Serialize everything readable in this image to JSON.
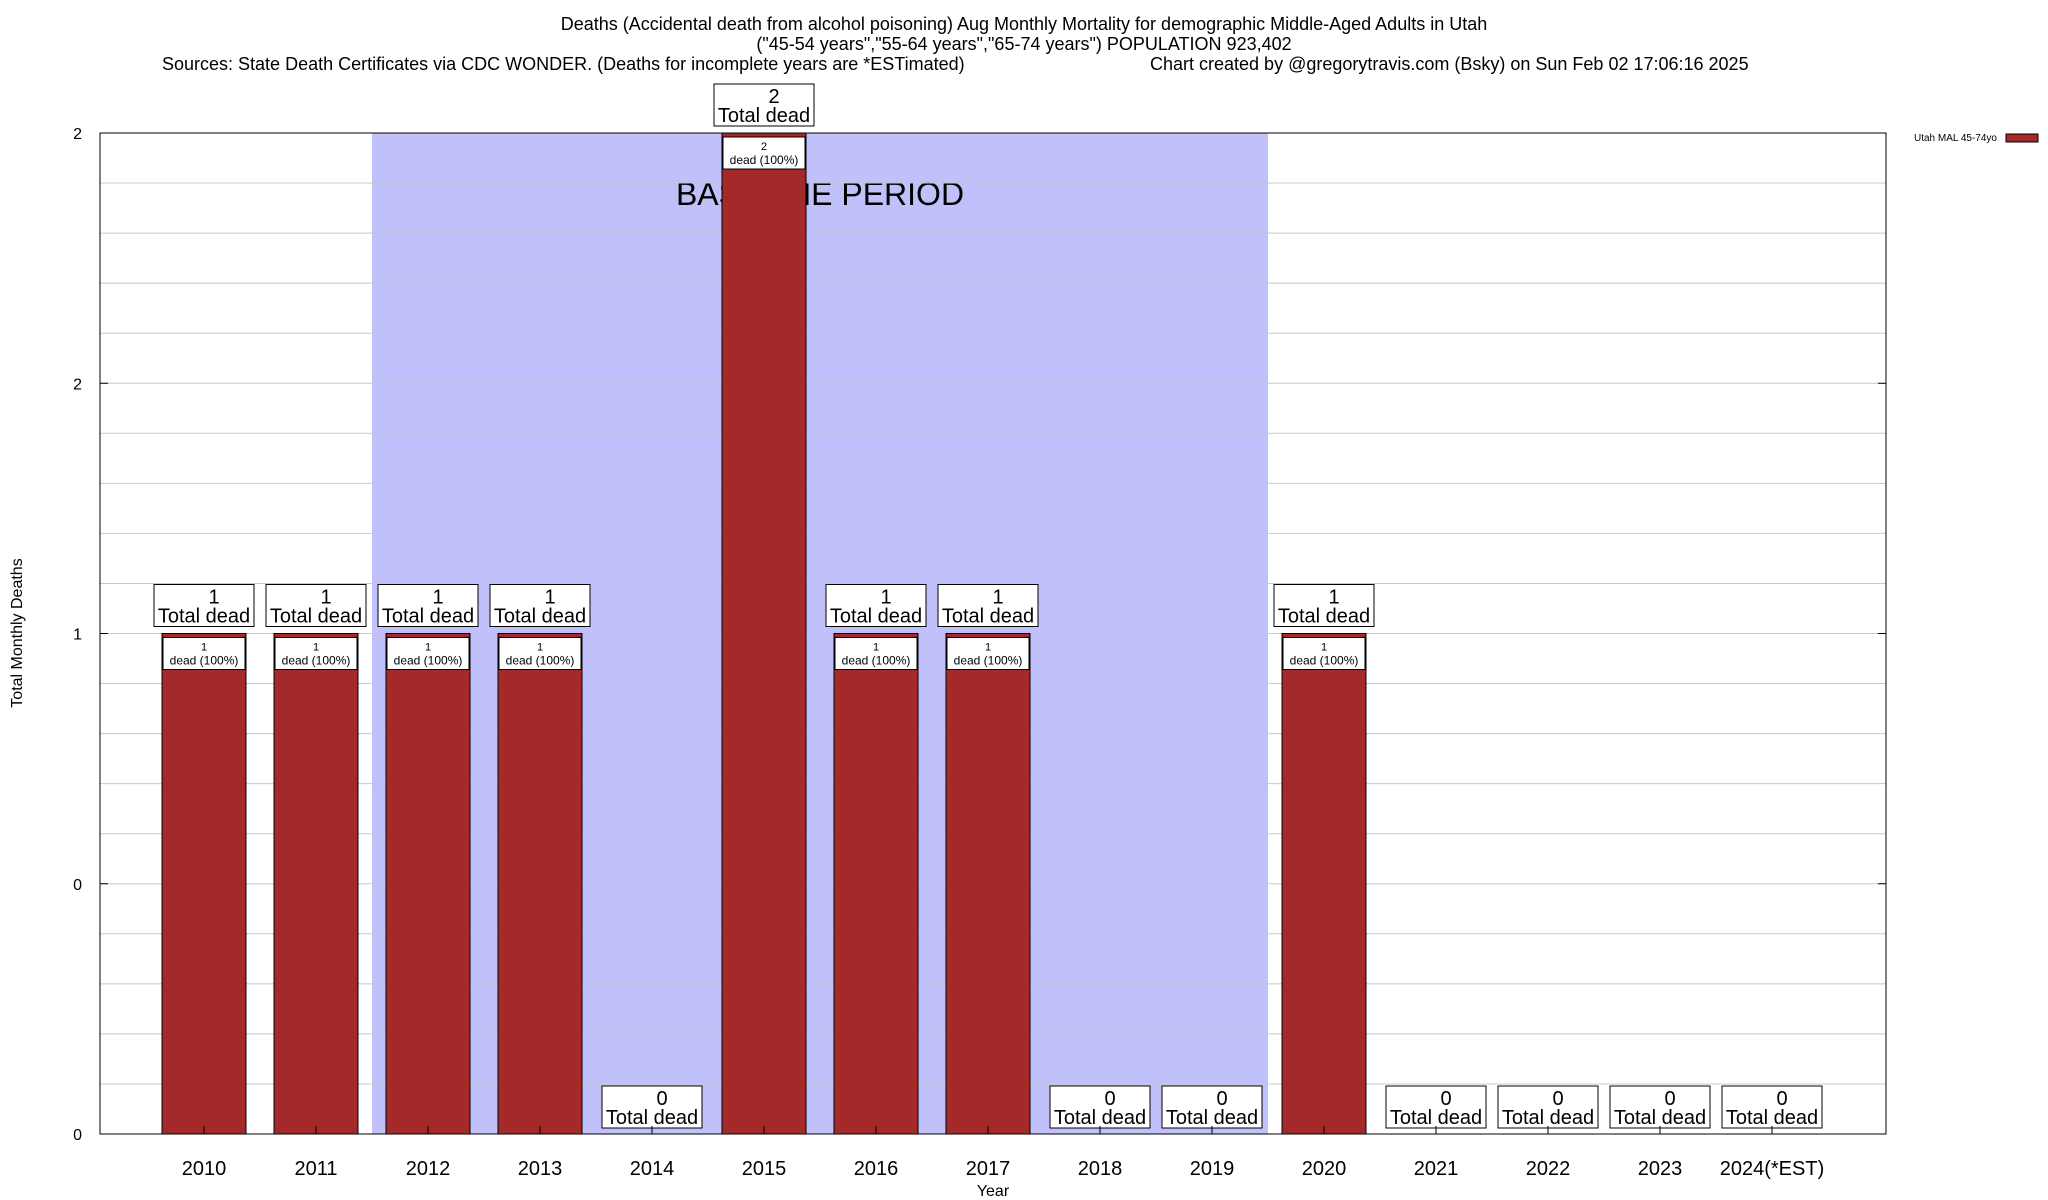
{
  "title": {
    "line1": "Deaths (Accidental death from alcohol poisoning) Aug Monthly Mortality for demographic Middle-Aged Adults in Utah",
    "line2": "(\"45-54 years\",\"55-64 years\",\"65-74 years\") POPULATION 923,402",
    "sources": "Sources: State Death Certificates via CDC WONDER. (Deaths for incomplete years are *ESTimated)",
    "credit": "Chart created by @gregorytravis.com (Bsky) on Sun Feb 02 17:06:16 2025"
  },
  "chart_data": {
    "type": "bar",
    "xlabel": "Year",
    "ylabel": "Total Monthly Deaths",
    "ylim": [
      0,
      2
    ],
    "yticks": [
      "0",
      "0",
      "1",
      "2",
      "2"
    ],
    "grid": true,
    "legend_position": "top-right",
    "baseline_label": "BASELINE PERIOD",
    "baseline_range": [
      "2012",
      "2019"
    ],
    "total_suffix": "Total dead",
    "bar_label_suffix": "dead (100%)",
    "categories": [
      "2010",
      "2011",
      "2012",
      "2013",
      "2014",
      "2015",
      "2016",
      "2017",
      "2018",
      "2019",
      "2020",
      "2021",
      "2022",
      "2023",
      "2024(*EST)"
    ],
    "series": [
      {
        "name": "Utah MAL 45-74yo",
        "color": "#a4292a",
        "values": [
          1,
          1,
          1,
          1,
          0,
          2,
          1,
          1,
          0,
          0,
          1,
          0,
          0,
          0,
          0
        ]
      }
    ],
    "colors": {
      "baseline_fill": "#c0c0fa",
      "bar": "#a4292a",
      "grid": "#c8c8c8"
    }
  }
}
